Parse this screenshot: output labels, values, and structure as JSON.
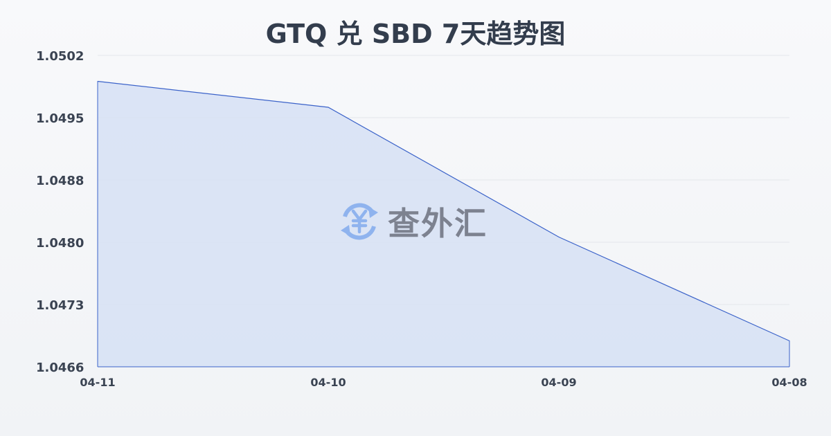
{
  "chart_data": {
    "type": "area",
    "title": "GTQ 兑 SBD 7天趋势图",
    "categories": [
      "04-11",
      "04-10",
      "04-09",
      "04-08"
    ],
    "values": [
      1.0499,
      1.0496,
      1.0481,
      1.0469
    ],
    "yticks": [
      "1.0502",
      "1.0495",
      "1.0488",
      "1.0480",
      "1.0473",
      "1.0466"
    ],
    "ylim": [
      1.0466,
      1.0502
    ],
    "grid": true,
    "line_color": "#3a62c9",
    "fill_color": "#d6e0f5"
  },
  "watermark": {
    "text": "查外汇",
    "icon": "yen-exchange-icon",
    "icon_color": "#8fb3ee"
  }
}
